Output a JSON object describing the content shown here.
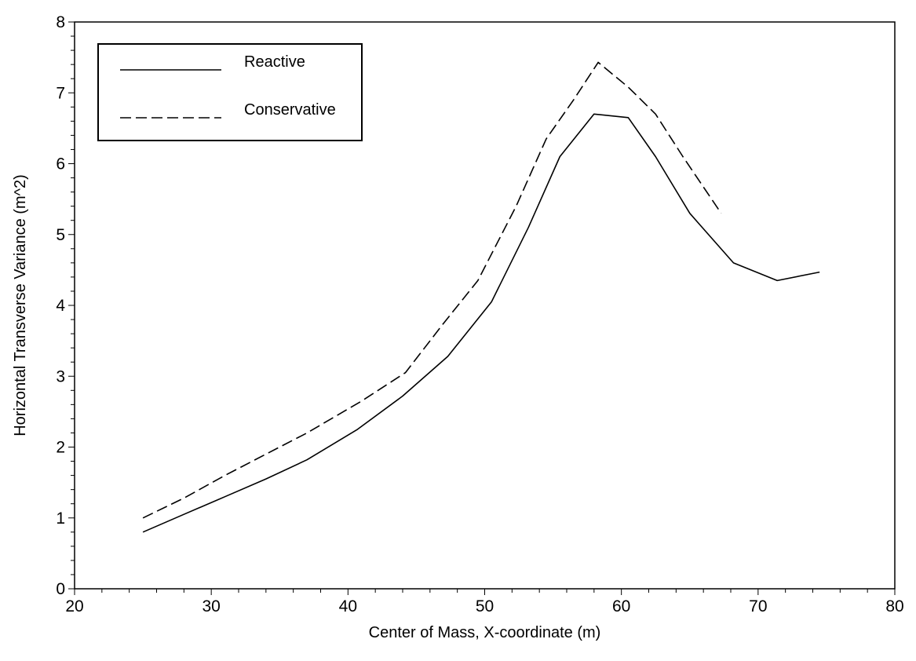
{
  "chart_data": {
    "type": "line",
    "xlabel": "Center of Mass, X-coordinate (m)",
    "ylabel": "Horizontal Transverse Variance (m^2)",
    "xlim": [
      20,
      80
    ],
    "ylim": [
      0,
      8
    ],
    "xticks": [
      "20",
      "30",
      "40",
      "50",
      "60",
      "70",
      "80"
    ],
    "yticks": [
      "0",
      "1",
      "2",
      "3",
      "4",
      "5",
      "6",
      "7",
      "8"
    ],
    "grid": false,
    "legend_position": "top-left",
    "series": [
      {
        "name": "Reactive",
        "style": "solid",
        "color": "#000000",
        "points": [
          [
            25.0,
            0.8
          ],
          [
            28.0,
            1.05
          ],
          [
            31.0,
            1.3
          ],
          [
            34.0,
            1.55
          ],
          [
            37.0,
            1.82
          ],
          [
            40.7,
            2.25
          ],
          [
            44.0,
            2.72
          ],
          [
            47.3,
            3.28
          ],
          [
            50.5,
            4.05
          ],
          [
            53.2,
            5.1
          ],
          [
            55.5,
            6.1
          ],
          [
            58.0,
            6.7
          ],
          [
            60.5,
            6.65
          ],
          [
            62.5,
            6.1
          ],
          [
            65.0,
            5.3
          ],
          [
            68.2,
            4.6
          ],
          [
            71.4,
            4.35
          ],
          [
            74.5,
            4.47
          ]
        ]
      },
      {
        "name": "Conservative",
        "style": "dashed",
        "color": "#000000",
        "points": [
          [
            25.0,
            1.0
          ],
          [
            28.0,
            1.28
          ],
          [
            31.0,
            1.6
          ],
          [
            34.0,
            1.9
          ],
          [
            37.0,
            2.2
          ],
          [
            41.0,
            2.65
          ],
          [
            44.2,
            3.05
          ],
          [
            47.0,
            3.75
          ],
          [
            49.5,
            4.35
          ],
          [
            52.3,
            5.4
          ],
          [
            54.5,
            6.35
          ],
          [
            56.5,
            6.9
          ],
          [
            58.3,
            7.43
          ],
          [
            60.5,
            7.08
          ],
          [
            62.5,
            6.7
          ],
          [
            64.5,
            6.1
          ],
          [
            67.3,
            5.3
          ]
        ]
      }
    ]
  }
}
